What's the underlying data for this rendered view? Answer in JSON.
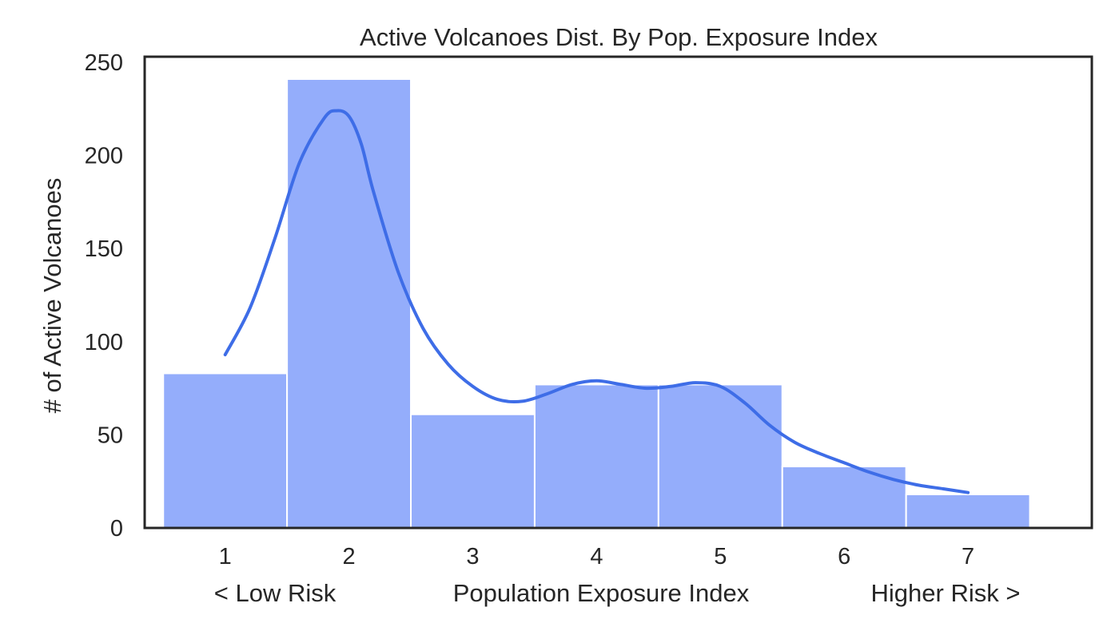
{
  "chart_data": {
    "type": "bar",
    "title": "Active Volcanoes Dist. By Pop. Exposure Index",
    "xlabel": "Population Exposure Index",
    "xlabel_left": "< Low Risk",
    "xlabel_right": "Higher Risk >",
    "ylabel": "# of Active Volcanoes",
    "categories": [
      "1",
      "2",
      "3",
      "4",
      "5",
      "6",
      "7"
    ],
    "values": [
      83,
      241,
      61,
      77,
      77,
      33,
      18
    ],
    "xlim": [
      0.35,
      8.0
    ],
    "ylim": [
      0,
      253
    ],
    "yticks": [
      0,
      50,
      100,
      150,
      200,
      250
    ],
    "grid": false,
    "bar_color": "#94adfb",
    "bar_edge_color": "#ffffff",
    "kde_color": "#3e6de7",
    "frame_color": "#262626",
    "kde_curve": {
      "x": [
        1.0,
        1.2,
        1.4,
        1.6,
        1.8,
        1.9,
        2.0,
        2.1,
        2.2,
        2.4,
        2.6,
        2.8,
        3.0,
        3.2,
        3.4,
        3.6,
        3.8,
        4.0,
        4.2,
        4.4,
        4.6,
        4.8,
        5.0,
        5.2,
        5.4,
        5.6,
        5.8,
        6.0,
        6.2,
        6.4,
        6.6,
        6.8,
        7.0
      ],
      "y": [
        93,
        118,
        155,
        196,
        220,
        224,
        221,
        206,
        180,
        137,
        107,
        88,
        76,
        69,
        68,
        72,
        77,
        79,
        77,
        75,
        76,
        78,
        76,
        67,
        55,
        46,
        40,
        35,
        30,
        26,
        23,
        21,
        19
      ]
    }
  }
}
